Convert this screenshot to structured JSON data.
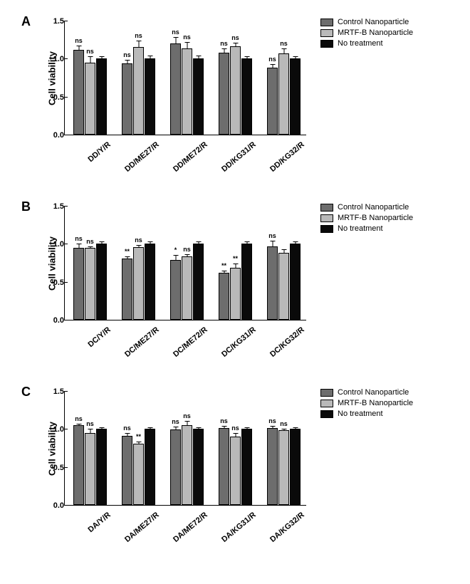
{
  "global": {
    "y_label": "Cell viability",
    "y_ticks": [
      0.0,
      0.5,
      1.0,
      1.5
    ],
    "y_max": 1.5,
    "legend": [
      {
        "label": "Control Nanoparticle",
        "color": "#6d6d6d"
      },
      {
        "label": "MRTF-B Nanoparticle",
        "color": "#b9b9b9"
      },
      {
        "label": "No treatment",
        "color": "#0a0a0a"
      }
    ],
    "bar_colors": [
      "#6d6d6d",
      "#b9b9b9",
      "#0a0a0a"
    ],
    "group_width": 50,
    "group_spacing": 68
  },
  "panels": [
    {
      "label": "A",
      "categories": [
        "DD/Y/R",
        "DD/ME27/R",
        "DD/ME72/R",
        "DD/KG31/R",
        "DD/KG32/R"
      ],
      "groups": [
        {
          "vals": [
            1.12,
            0.95,
            1.0
          ],
          "errs": [
            0.05,
            0.08,
            0.03
          ],
          "sigs": [
            "ns",
            "ns",
            ""
          ]
        },
        {
          "vals": [
            0.94,
            1.15,
            1.0
          ],
          "errs": [
            0.04,
            0.09,
            0.04
          ],
          "sigs": [
            "ns",
            "ns",
            ""
          ]
        },
        {
          "vals": [
            1.2,
            1.13,
            1.0
          ],
          "errs": [
            0.08,
            0.09,
            0.04
          ],
          "sigs": [
            "ns",
            "ns",
            ""
          ]
        },
        {
          "vals": [
            1.08,
            1.16,
            1.0
          ],
          "errs": [
            0.05,
            0.05,
            0.03
          ],
          "sigs": [
            "ns",
            "ns",
            ""
          ]
        },
        {
          "vals": [
            0.88,
            1.07,
            1.0
          ],
          "errs": [
            0.05,
            0.06,
            0.03
          ],
          "sigs": [
            "ns",
            "ns",
            ""
          ]
        }
      ]
    },
    {
      "label": "B",
      "categories": [
        "DC/Y/R",
        "DC/ME27/R",
        "DC/ME72/R",
        "DC/KG31/R",
        "DC/KG32/R"
      ],
      "groups": [
        {
          "vals": [
            0.95,
            0.95,
            1.0
          ],
          "errs": [
            0.05,
            0.02,
            0.03
          ],
          "sigs": [
            "ns",
            "ns",
            ""
          ]
        },
        {
          "vals": [
            0.81,
            0.96,
            1.0
          ],
          "errs": [
            0.02,
            0.02,
            0.03
          ],
          "sigs": [
            "**",
            "ns",
            ""
          ]
        },
        {
          "vals": [
            0.79,
            0.83,
            1.0
          ],
          "errs": [
            0.06,
            0.03,
            0.03
          ],
          "sigs": [
            "*",
            "ns",
            ""
          ]
        },
        {
          "vals": [
            0.62,
            0.68,
            1.0
          ],
          "errs": [
            0.03,
            0.06,
            0.03
          ],
          "sigs": [
            "**",
            "**",
            ""
          ]
        },
        {
          "vals": [
            0.97,
            0.88,
            1.0
          ],
          "errs": [
            0.07,
            0.05,
            0.03
          ],
          "sigs": [
            "ns",
            "",
            ""
          ]
        }
      ]
    },
    {
      "label": "C",
      "categories": [
        "DA/Y/R",
        "DA/ME27/R",
        "DA/ME72/R",
        "DA/KG31/R",
        "DA/KG32/R"
      ],
      "groups": [
        {
          "vals": [
            1.05,
            0.95,
            1.0
          ],
          "errs": [
            0.02,
            0.05,
            0.02
          ],
          "sigs": [
            "ns",
            "ns",
            ""
          ]
        },
        {
          "vals": [
            0.91,
            0.81,
            1.0
          ],
          "errs": [
            0.04,
            0.02,
            0.02
          ],
          "sigs": [
            "ns",
            "**",
            ""
          ]
        },
        {
          "vals": [
            0.99,
            1.05,
            1.0
          ],
          "errs": [
            0.04,
            0.06,
            0.02
          ],
          "sigs": [
            "ns",
            "ns",
            ""
          ]
        },
        {
          "vals": [
            1.01,
            0.9,
            1.0
          ],
          "errs": [
            0.03,
            0.05,
            0.02
          ],
          "sigs": [
            "ns",
            "ns",
            ""
          ]
        },
        {
          "vals": [
            1.01,
            0.98,
            1.0
          ],
          "errs": [
            0.03,
            0.02,
            0.02
          ],
          "sigs": [
            "ns",
            "ns",
            ""
          ]
        }
      ]
    }
  ]
}
